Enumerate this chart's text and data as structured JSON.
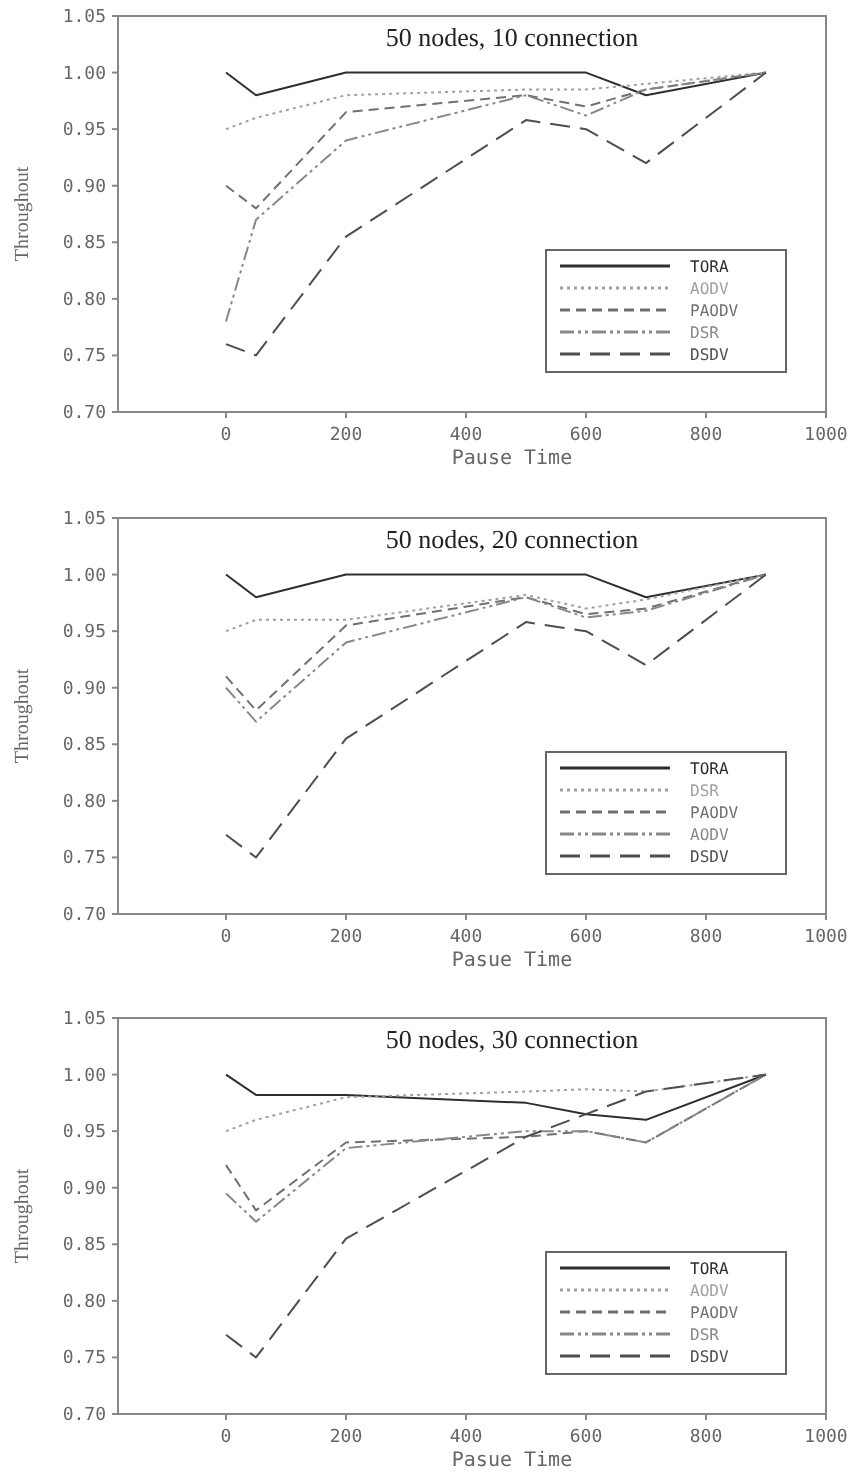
{
  "chart_data": [
    {
      "type": "line",
      "title": "50 nodes, 10 connection",
      "xlabel": "Pause Time",
      "ylabel": "Throughout",
      "x": [
        0,
        50,
        200,
        500,
        600,
        700,
        900
      ],
      "xlim": [
        -180,
        1000
      ],
      "xticks": [
        0,
        200,
        400,
        600,
        800,
        1000
      ],
      "ylim": [
        0.7,
        1.05
      ],
      "yticks": [
        {
          "value": 0.7,
          "label": "0.70"
        },
        {
          "value": 0.75,
          "label": "0.75"
        },
        {
          "value": 0.8,
          "label": "0.80"
        },
        {
          "value": 0.85,
          "label": "0.85"
        },
        {
          "value": 0.9,
          "label": "0.90"
        },
        {
          "value": 0.95,
          "label": "0.95"
        },
        {
          "value": 1.0,
          "label": "1.00"
        },
        {
          "value": 1.05,
          "label": "1.05"
        }
      ],
      "legend": "bottom right",
      "series": [
        {
          "name": "TORA",
          "color": "#2e2e2e",
          "line_style": "solid",
          "values": [
            1.0,
            0.98,
            1.0,
            1.0,
            1.0,
            0.98,
            1.0
          ]
        },
        {
          "name": "AODV",
          "color": "#a0a0a0",
          "line_style": "dotted",
          "values": [
            0.95,
            0.96,
            0.98,
            0.985,
            0.985,
            0.99,
            1.0
          ]
        },
        {
          "name": "PAODV",
          "color": "#707070",
          "line_style": "dashed",
          "values": [
            0.9,
            0.88,
            0.965,
            0.98,
            0.97,
            0.985,
            1.0
          ]
        },
        {
          "name": "DSR",
          "color": "#888888",
          "line_style": "dashdot",
          "values": [
            0.78,
            0.87,
            0.94,
            0.98,
            0.962,
            0.985,
            1.0
          ]
        },
        {
          "name": "DSDV",
          "color": "#4e4e4e",
          "line_style": "longdash",
          "values": [
            0.76,
            0.75,
            0.855,
            0.958,
            0.95,
            0.92,
            1.0
          ]
        }
      ]
    },
    {
      "type": "line",
      "title": "50 nodes, 20 connection",
      "xlabel": "Pasue Time",
      "ylabel": "Throughout",
      "x": [
        0,
        50,
        200,
        500,
        600,
        700,
        900
      ],
      "xlim": [
        -180,
        1000
      ],
      "xticks": [
        0,
        200,
        400,
        600,
        800,
        1000
      ],
      "ylim": [
        0.7,
        1.05
      ],
      "yticks": [
        {
          "value": 0.7,
          "label": "0.70"
        },
        {
          "value": 0.75,
          "label": "0.75"
        },
        {
          "value": 0.8,
          "label": "0.80"
        },
        {
          "value": 0.85,
          "label": "0.85"
        },
        {
          "value": 0.9,
          "label": "0.90"
        },
        {
          "value": 0.95,
          "label": "0.95"
        },
        {
          "value": 1.0,
          "label": "1.00"
        },
        {
          "value": 1.05,
          "label": "1.05"
        }
      ],
      "legend": "bottom right",
      "series": [
        {
          "name": "TORA",
          "color": "#2e2e2e",
          "line_style": "solid",
          "values": [
            1.0,
            0.98,
            1.0,
            1.0,
            1.0,
            0.98,
            1.0
          ]
        },
        {
          "name": "DSR",
          "color": "#a0a0a0",
          "line_style": "dotted",
          "values": [
            0.95,
            0.96,
            0.96,
            0.982,
            0.97,
            0.978,
            1.0
          ]
        },
        {
          "name": "PAODV",
          "color": "#707070",
          "line_style": "dashed",
          "values": [
            0.91,
            0.88,
            0.955,
            0.98,
            0.965,
            0.97,
            1.0
          ]
        },
        {
          "name": "AODV",
          "color": "#888888",
          "line_style": "dashdot",
          "values": [
            0.9,
            0.87,
            0.94,
            0.98,
            0.962,
            0.968,
            1.0
          ]
        },
        {
          "name": "DSDV",
          "color": "#4e4e4e",
          "line_style": "longdash",
          "values": [
            0.77,
            0.75,
            0.855,
            0.958,
            0.95,
            0.92,
            1.0
          ]
        }
      ]
    },
    {
      "type": "line",
      "title": "50 nodes, 30 connection",
      "xlabel": "Pasue Time",
      "ylabel": "Throughout",
      "x": [
        0,
        50,
        200,
        500,
        600,
        700,
        900
      ],
      "xlim": [
        -180,
        1000
      ],
      "xticks": [
        0,
        200,
        400,
        600,
        800,
        1000
      ],
      "ylim": [
        0.7,
        1.05
      ],
      "yticks": [
        {
          "value": 0.7,
          "label": "0.70"
        },
        {
          "value": 0.75,
          "label": "0.75"
        },
        {
          "value": 0.8,
          "label": "0.80"
        },
        {
          "value": 0.85,
          "label": "0.85"
        },
        {
          "value": 0.9,
          "label": "0.90"
        },
        {
          "value": 0.95,
          "label": "0.95"
        },
        {
          "value": 1.0,
          "label": "1.00"
        },
        {
          "value": 1.05,
          "label": "1.05"
        }
      ],
      "legend": "bottom right",
      "series": [
        {
          "name": "TORA",
          "color": "#2e2e2e",
          "line_style": "solid",
          "values": [
            1.0,
            0.982,
            0.982,
            0.975,
            0.965,
            0.96,
            1.0
          ]
        },
        {
          "name": "AODV",
          "color": "#a0a0a0",
          "line_style": "dotted",
          "values": [
            0.95,
            0.96,
            0.98,
            0.985,
            0.987,
            0.985,
            1.0
          ]
        },
        {
          "name": "PAODV",
          "color": "#707070",
          "line_style": "dashed",
          "values": [
            0.92,
            0.88,
            0.94,
            0.945,
            0.95,
            0.94,
            1.0
          ]
        },
        {
          "name": "DSR",
          "color": "#888888",
          "line_style": "dashdot",
          "values": [
            0.895,
            0.87,
            0.935,
            0.95,
            0.95,
            0.94,
            1.0
          ]
        },
        {
          "name": "DSDV",
          "color": "#4e4e4e",
          "line_style": "longdash",
          "values": [
            0.77,
            0.75,
            0.855,
            0.945,
            0.965,
            0.985,
            1.0
          ]
        }
      ]
    }
  ]
}
